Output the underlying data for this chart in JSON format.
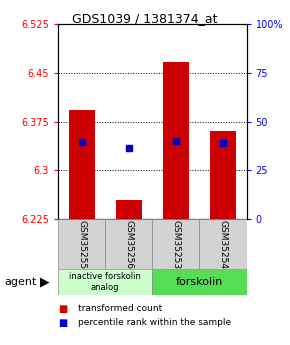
{
  "title": "GDS1039 / 1381374_at",
  "samples": [
    "GSM35255",
    "GSM35256",
    "GSM35253",
    "GSM35254"
  ],
  "bar_bottoms": [
    6.225,
    6.225,
    6.225,
    6.225
  ],
  "bar_tops": [
    6.393,
    6.255,
    6.467,
    6.36
  ],
  "blue_dots": [
    6.343,
    6.334,
    6.345,
    6.342
  ],
  "ylim_left": [
    6.225,
    6.525
  ],
  "ylim_right": [
    0,
    100
  ],
  "yticks_left": [
    6.225,
    6.3,
    6.375,
    6.45,
    6.525
  ],
  "yticks_left_labels": [
    "6.225",
    "6.3",
    "6.375",
    "6.45",
    "6.525"
  ],
  "yticks_right": [
    0,
    25,
    50,
    75,
    100
  ],
  "yticks_right_labels": [
    "0",
    "25",
    "50",
    "75",
    "100%"
  ],
  "bar_color": "#cc0000",
  "dot_color": "#0000cc",
  "group1_label": "inactive forskolin\nanalog",
  "group2_label": "forskolin",
  "group1_color": "#ccffcc",
  "group2_color": "#55dd55",
  "bar_width": 0.55,
  "agent_label": "agent",
  "legend_red": "transformed count",
  "legend_blue": "percentile rank within the sample",
  "xlim": [
    -0.5,
    3.5
  ]
}
